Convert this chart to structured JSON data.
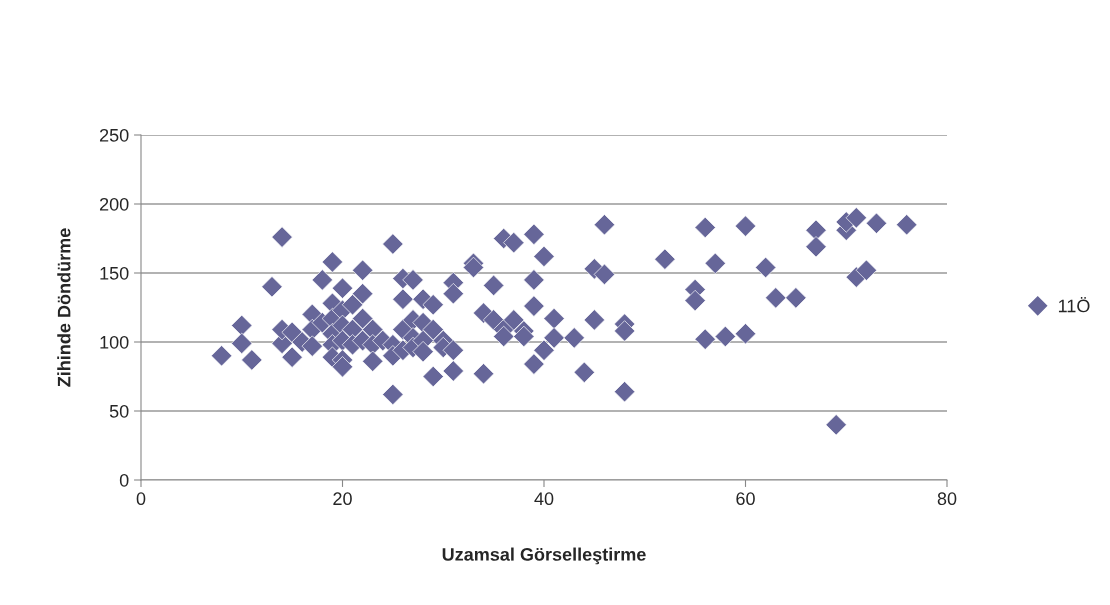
{
  "chart_data": {
    "type": "scatter",
    "xlabel": "Uzamsal Görselleştirme",
    "ylabel": "Zihinde Döndürme",
    "xlim": [
      0,
      80
    ],
    "xticks": [
      0,
      20,
      40,
      60,
      80
    ],
    "ylim": [
      0,
      250
    ],
    "yticks": [
      0,
      50,
      100,
      150,
      200,
      250
    ],
    "grid": "y",
    "legend": "right",
    "marker": "diamond",
    "series": [
      {
        "name": "11Ö",
        "color": "#666699",
        "x": [
          8,
          10,
          10,
          11,
          13,
          14,
          14,
          14,
          15,
          15,
          16,
          17,
          17,
          17,
          18,
          18,
          19,
          19,
          19,
          19,
          19,
          19,
          20,
          20,
          20,
          20,
          20,
          20,
          21,
          21,
          21,
          22,
          22,
          22,
          22,
          23,
          23,
          23,
          24,
          25,
          25,
          25,
          25,
          26,
          26,
          26,
          26,
          27,
          27,
          27,
          27,
          28,
          28,
          28,
          28,
          29,
          29,
          29,
          30,
          30,
          31,
          31,
          31,
          31,
          33,
          33,
          34,
          34,
          35,
          35,
          36,
          36,
          36,
          37,
          37,
          38,
          38,
          39,
          39,
          39,
          39,
          40,
          40,
          41,
          41,
          43,
          44,
          45,
          45,
          46,
          46,
          48,
          48,
          48,
          52,
          55,
          55,
          56,
          56,
          57,
          58,
          60,
          60,
          62,
          63,
          65,
          67,
          67,
          69,
          70,
          70,
          71,
          71,
          72,
          73,
          76
        ],
        "values": [
          90,
          112,
          99,
          87,
          140,
          176,
          99,
          109,
          89,
          107,
          100,
          120,
          109,
          97,
          145,
          114,
          158,
          128,
          117,
          106,
          98,
          89,
          139,
          123,
          112,
          101,
          87,
          82,
          127,
          109,
          98,
          152,
          135,
          117,
          101,
          109,
          98,
          86,
          101,
          171,
          98,
          90,
          62,
          146,
          131,
          109,
          94,
          145,
          116,
          103,
          96,
          131,
          114,
          101,
          93,
          127,
          109,
          75,
          101,
          96,
          143,
          135,
          94,
          79,
          157,
          154,
          121,
          77,
          141,
          116,
          175,
          109,
          104,
          172,
          116,
          108,
          104,
          178,
          145,
          126,
          84,
          162,
          94,
          117,
          103,
          103,
          78,
          116,
          153,
          149,
          185,
          113,
          108,
          64,
          160,
          138,
          130,
          183,
          102,
          157,
          104,
          106,
          184,
          154,
          132,
          132,
          181,
          169,
          40,
          181,
          187,
          190,
          147,
          152,
          186,
          185
        ]
      }
    ]
  }
}
